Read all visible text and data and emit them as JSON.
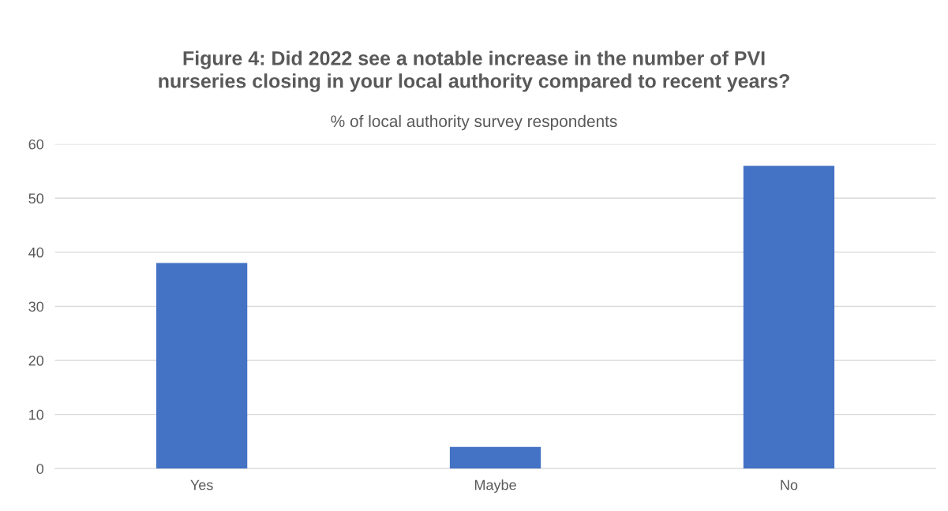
{
  "chart_data": {
    "type": "bar",
    "title": "Figure 4: Did 2022 see a notable increase in the number of PVI\nnurseries closing in your local authority compared to recent years?",
    "subtitle": "% of local authority survey respondents",
    "categories": [
      "Yes",
      "Maybe",
      "No"
    ],
    "values": [
      38,
      4,
      56
    ],
    "color": "#4472c4",
    "ylim": [
      0,
      60
    ],
    "yticks": [
      0,
      10,
      20,
      30,
      40,
      50,
      60
    ],
    "grid": "y"
  }
}
